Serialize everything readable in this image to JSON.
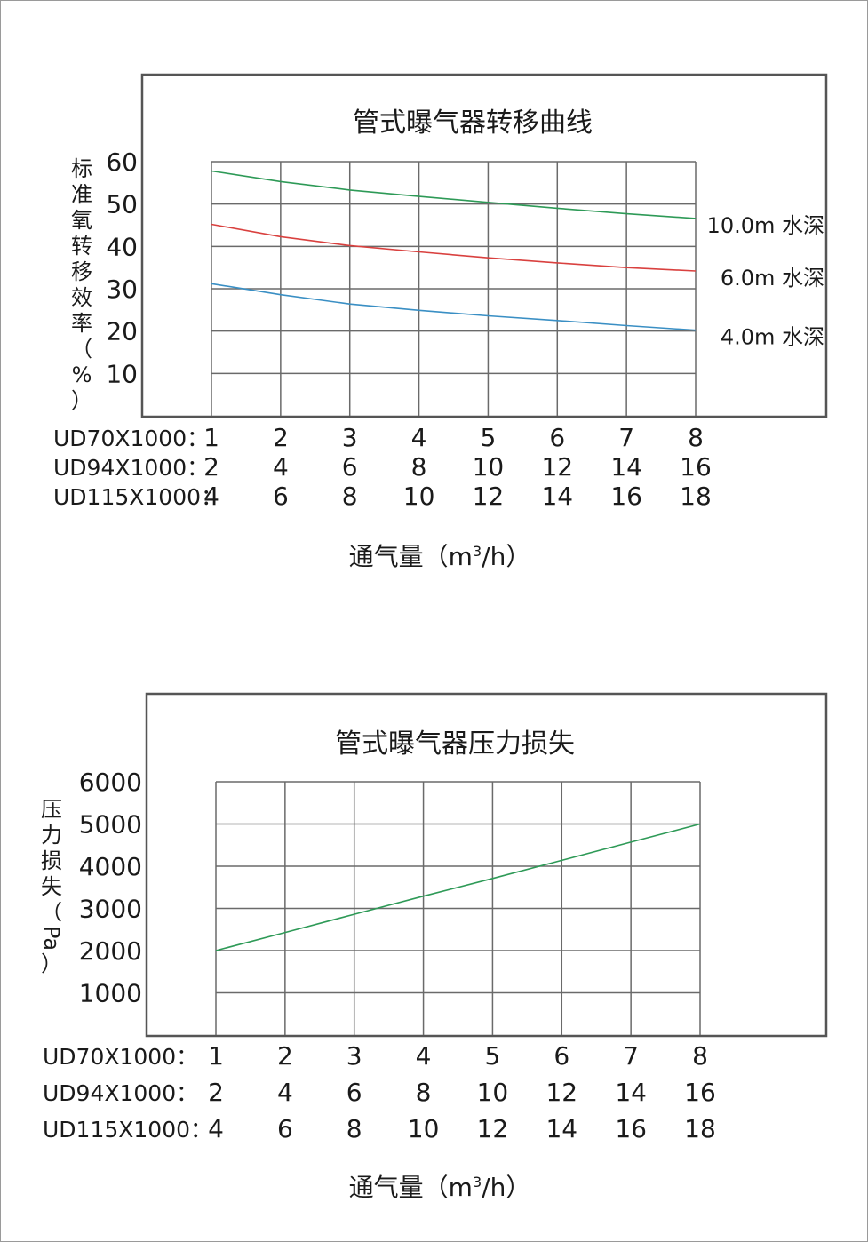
{
  "chart_data": [
    {
      "type": "line",
      "title": "管式曝气器转移曲线",
      "ylabel": "标准氧转移效率（%）",
      "ylabel_chars": [
        "标",
        "准",
        "氧",
        "转",
        "移",
        "效",
        "率",
        "（",
        "%",
        "）"
      ],
      "xlabel_prefix": "通气量（m",
      "xlabel_sup": "3",
      "xlabel_suffix": "/h）",
      "yticks": [
        "60",
        "50",
        "40",
        "30",
        "20",
        "10"
      ],
      "ylim": [
        0,
        60
      ],
      "xlim": [
        1,
        8
      ],
      "grid": true,
      "x_rows": [
        {
          "label": "UD70X1000：",
          "values": [
            "1",
            "2",
            "3",
            "4",
            "5",
            "6",
            "7",
            "8"
          ]
        },
        {
          "label": "UD94X1000：",
          "values": [
            "2",
            "4",
            "6",
            "8",
            "10",
            "12",
            "14",
            "16"
          ]
        },
        {
          "label": "UD115X1000：",
          "values": [
            "4",
            "6",
            "8",
            "10",
            "12",
            "14",
            "16",
            "18"
          ]
        }
      ],
      "x": [
        1,
        2,
        3,
        4,
        5,
        6,
        7,
        8
      ],
      "series": [
        {
          "name": "10.0m 水深",
          "color": "#2e9a57",
          "values": [
            57.8,
            55.3,
            53.3,
            51.8,
            50.4,
            49.0,
            47.7,
            46.6
          ]
        },
        {
          "name": "6.0m  水深",
          "color": "#d9413f",
          "values": [
            45.2,
            42.3,
            40.2,
            38.7,
            37.3,
            36.1,
            35.0,
            34.2
          ]
        },
        {
          "name": "4.0m  水深",
          "color": "#3a8fc4",
          "values": [
            31.2,
            28.6,
            26.4,
            24.9,
            23.6,
            22.5,
            21.3,
            20.2
          ]
        }
      ]
    },
    {
      "type": "line",
      "title": "管式曝气器压力损失",
      "ylabel": "压力损失（Pa）",
      "ylabel_chars": [
        "压",
        "力",
        "损",
        "失",
        "（",
        "Pa",
        "）"
      ],
      "xlabel_prefix": "通气量（m",
      "xlabel_sup": "3",
      "xlabel_suffix": "/h）",
      "yticks": [
        "6000",
        "5000",
        "4000",
        "3000",
        "2000",
        "1000"
      ],
      "ylim": [
        0,
        6000
      ],
      "xlim": [
        1,
        8
      ],
      "grid": true,
      "x_rows": [
        {
          "label": "UD70X1000：",
          "values": [
            "1",
            "2",
            "3",
            "4",
            "5",
            "6",
            "7",
            "8"
          ]
        },
        {
          "label": "UD94X1000：",
          "values": [
            "2",
            "4",
            "6",
            "8",
            "10",
            "12",
            "14",
            "16"
          ]
        },
        {
          "label": "UD115X1000：",
          "values": [
            "4",
            "6",
            "8",
            "10",
            "12",
            "14",
            "16",
            "18"
          ]
        }
      ],
      "x": [
        1,
        2,
        3,
        4,
        5,
        6,
        7,
        8
      ],
      "series": [
        {
          "color": "#2e9a57",
          "values": [
            2000,
            2430,
            2860,
            3290,
            3710,
            4140,
            4570,
            5000
          ]
        }
      ]
    }
  ]
}
